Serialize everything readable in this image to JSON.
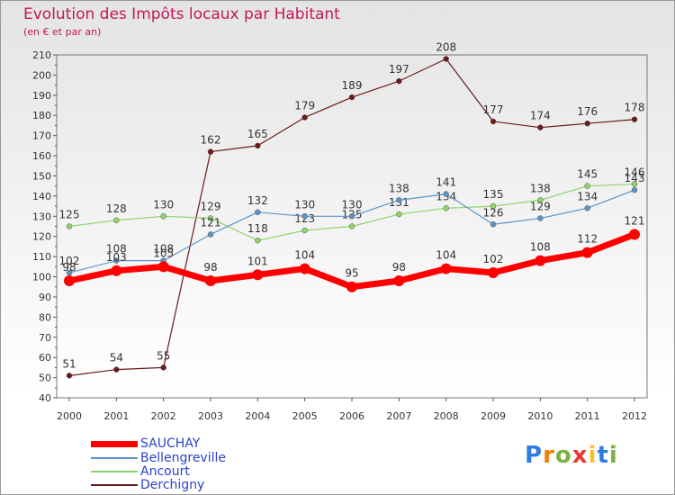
{
  "chart_data": {
    "type": "line",
    "title": "Evolution des Impôts locaux par Habitant",
    "subtitle": "(en € et par an)",
    "xlabel": "",
    "ylabel": "",
    "ylim": [
      40,
      210
    ],
    "yticks": [
      40,
      50,
      60,
      70,
      80,
      90,
      100,
      110,
      120,
      130,
      140,
      150,
      160,
      170,
      180,
      190,
      200,
      210
    ],
    "categories": [
      "2000",
      "2001",
      "2002",
      "2003",
      "2004",
      "2005",
      "2006",
      "2007",
      "2008",
      "2009",
      "2010",
      "2011",
      "2012"
    ],
    "grid": false,
    "legend_position": "bottom-left",
    "series": [
      {
        "name": "Derchigny",
        "color": "#6b1a1a",
        "values": [
          51,
          54,
          55,
          162,
          165,
          179,
          189,
          197,
          208,
          177,
          174,
          176,
          178
        ]
      },
      {
        "name": "Ancourt",
        "color": "#8fd36a",
        "values": [
          125,
          128,
          130,
          129,
          118,
          123,
          125,
          131,
          134,
          135,
          138,
          145,
          146
        ]
      },
      {
        "name": "Bellengreville",
        "color": "#5e93c5",
        "values": [
          102,
          108,
          108,
          121,
          132,
          130,
          130,
          138,
          141,
          126,
          129,
          134,
          143
        ]
      },
      {
        "name": "SAUCHAY",
        "color": "#ff0000",
        "values": [
          98,
          103,
          105,
          98,
          101,
          104,
          95,
          98,
          104,
          102,
          108,
          112,
          121
        ]
      }
    ]
  },
  "legend": [
    "SAUCHAY",
    "Bellengreville",
    "Ancourt",
    "Derchigny"
  ],
  "brand": {
    "letters": [
      "P",
      "r",
      "o",
      "x",
      "i",
      "t",
      "i"
    ],
    "colors": [
      "#2f7de1",
      "#f57c00",
      "#7cb342",
      "#e53935",
      "#fbc02d",
      "#2f7de1",
      "#7cb342"
    ]
  }
}
